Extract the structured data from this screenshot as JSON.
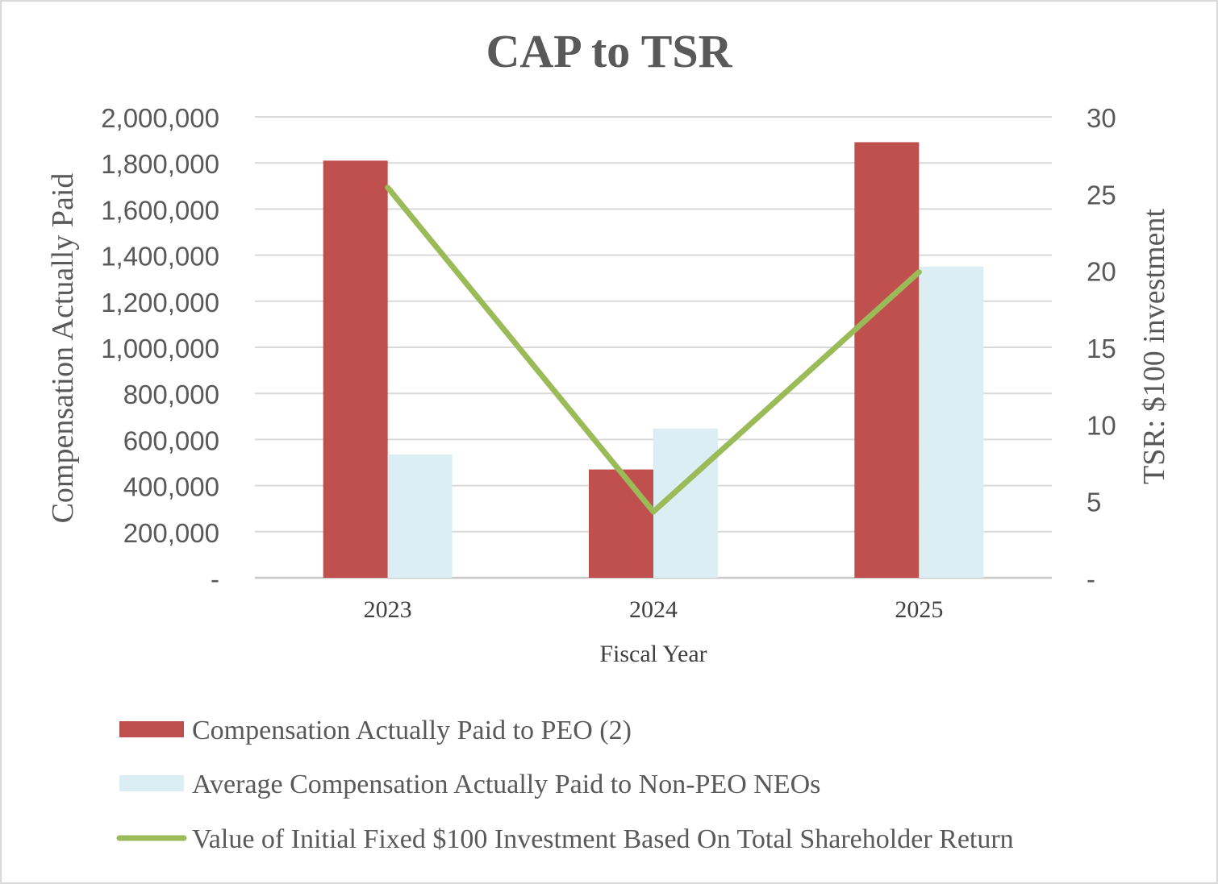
{
  "chart_data": {
    "type": "bar",
    "title": "CAP to TSR",
    "xlabel": "Fiscal Year",
    "ylabel": "Compensation Actually  Paid",
    "y2label": "TSR: $100 investment",
    "categories": [
      "2023",
      "2024",
      "2025"
    ],
    "ylim": [
      0,
      2000000
    ],
    "y_ticks": [
      "-",
      "200,000",
      "400,000",
      "600,000",
      "800,000",
      "1,000,000",
      "1,200,000",
      "1,400,000",
      "1,600,000",
      "1,800,000",
      "2,000,000"
    ],
    "y_tick_values": [
      0,
      200000,
      400000,
      600000,
      800000,
      1000000,
      1200000,
      1400000,
      1600000,
      1800000,
      2000000
    ],
    "y2lim": [
      0,
      30
    ],
    "y2_ticks": [
      "-",
      "5",
      "10",
      "15",
      "20",
      "25",
      "30"
    ],
    "y2_tick_values": [
      0,
      5,
      10,
      15,
      20,
      25,
      30
    ],
    "grid": true,
    "legend_position": "bottom",
    "series": [
      {
        "name": "Compensation Actually Paid to PEO (2)",
        "kind": "bar",
        "axis": "left",
        "color": "#c0504d",
        "values": [
          1810000,
          470000,
          1890000
        ]
      },
      {
        "name": "Average Compensation Actually Paid to Non-PEO NEOs",
        "kind": "bar",
        "axis": "left",
        "color": "#dbeef4",
        "values": [
          535000,
          648000,
          1350000
        ]
      },
      {
        "name": "Value of Initial Fixed $100 Investment Based On Total Shareholder Return",
        "kind": "line",
        "axis": "right",
        "color": "#9bbb59",
        "values": [
          25.4,
          4.3,
          19.9
        ]
      }
    ]
  }
}
